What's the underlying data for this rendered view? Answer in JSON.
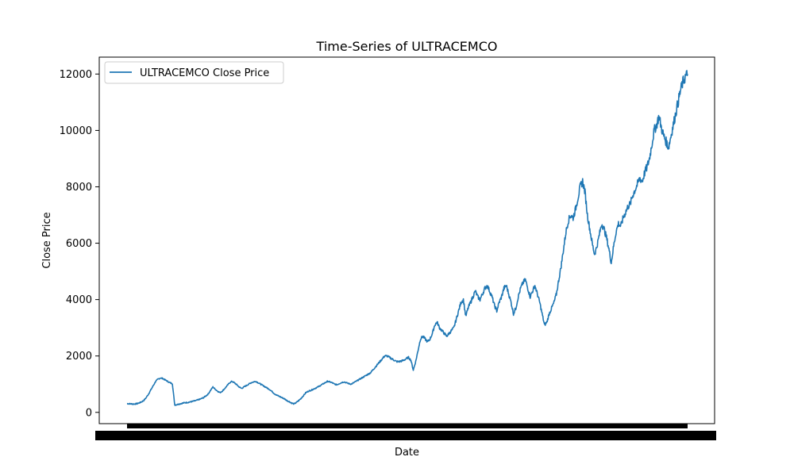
{
  "chart_data": {
    "type": "line",
    "title": "Time-Series of ULTRACEMCO",
    "xlabel": "Date",
    "ylabel": "Close Price",
    "ylim": [
      -400,
      12600
    ],
    "yticks": [
      0,
      2000,
      4000,
      6000,
      8000,
      10000,
      12000
    ],
    "ytick_labels": [
      "0",
      "2000",
      "4000",
      "6000",
      "8000",
      "10000",
      "12000"
    ],
    "x_tick_labels": "overlapping, illegible date labels",
    "grid": false,
    "legend": {
      "placement": "top-left"
    },
    "series": [
      {
        "name": "ULTRACEMCO Close Price",
        "color": "#1f77b4",
        "values": [
          310,
          305,
          300,
          295,
          305,
          330,
          370,
          420,
          520,
          650,
          800,
          950,
          1100,
          1180,
          1220,
          1200,
          1150,
          1100,
          1050,
          1020,
          260,
          280,
          300,
          320,
          340,
          350,
          360,
          380,
          400,
          420,
          450,
          480,
          520,
          580,
          650,
          780,
          900,
          820,
          750,
          700,
          760,
          850,
          950,
          1050,
          1100,
          1050,
          980,
          900,
          850,
          900,
          950,
          1000,
          1050,
          1080,
          1100,
          1050,
          1000,
          950,
          900,
          850,
          800,
          720,
          650,
          600,
          560,
          520,
          480,
          420,
          380,
          330,
          300,
          350,
          420,
          500,
          600,
          700,
          750,
          780,
          820,
          860,
          900,
          950,
          1000,
          1050,
          1100,
          1080,
          1050,
          1000,
          980,
          1020,
          1060,
          1080,
          1050,
          1020,
          1000,
          1050,
          1100,
          1150,
          1200,
          1250,
          1300,
          1350,
          1400,
          1500,
          1600,
          1700,
          1800,
          1900,
          2000,
          2000,
          1950,
          1900,
          1850,
          1800,
          1800,
          1820,
          1850,
          1900,
          1950,
          1850,
          1500,
          1800,
          2200,
          2600,
          2700,
          2600,
          2500,
          2600,
          2800,
          3100,
          3200,
          3000,
          2900,
          2800,
          2700,
          2800,
          2900,
          3000,
          3300,
          3600,
          3900,
          4000,
          3400,
          3700,
          3900,
          4100,
          4300,
          4100,
          4000,
          4200,
          4400,
          4500,
          4300,
          4100,
          3800,
          3600,
          3900,
          4100,
          4400,
          4500,
          4200,
          3900,
          3500,
          3700,
          4100,
          4400,
          4600,
          4700,
          4400,
          4100,
          4300,
          4500,
          4200,
          3900,
          3500,
          3100,
          3200,
          3500,
          3700,
          3900,
          4200,
          4700,
          5200,
          5800,
          6400,
          6800,
          7000,
          6900,
          7200,
          7600,
          8000,
          8200,
          7800,
          7000,
          6500,
          6000,
          5600,
          5900,
          6300,
          6700,
          6500,
          6200,
          5800,
          5300,
          5900,
          6400,
          6700,
          6600,
          6900,
          7100,
          7300,
          7400,
          7700,
          7900,
          8100,
          8300,
          8200,
          8500,
          8700,
          9000,
          9500,
          10000,
          10200,
          10500,
          10100,
          9800,
          9600,
          9400,
          9800,
          10200,
          10600,
          11000,
          11400,
          11700,
          11900,
          12000
        ]
      }
    ]
  }
}
